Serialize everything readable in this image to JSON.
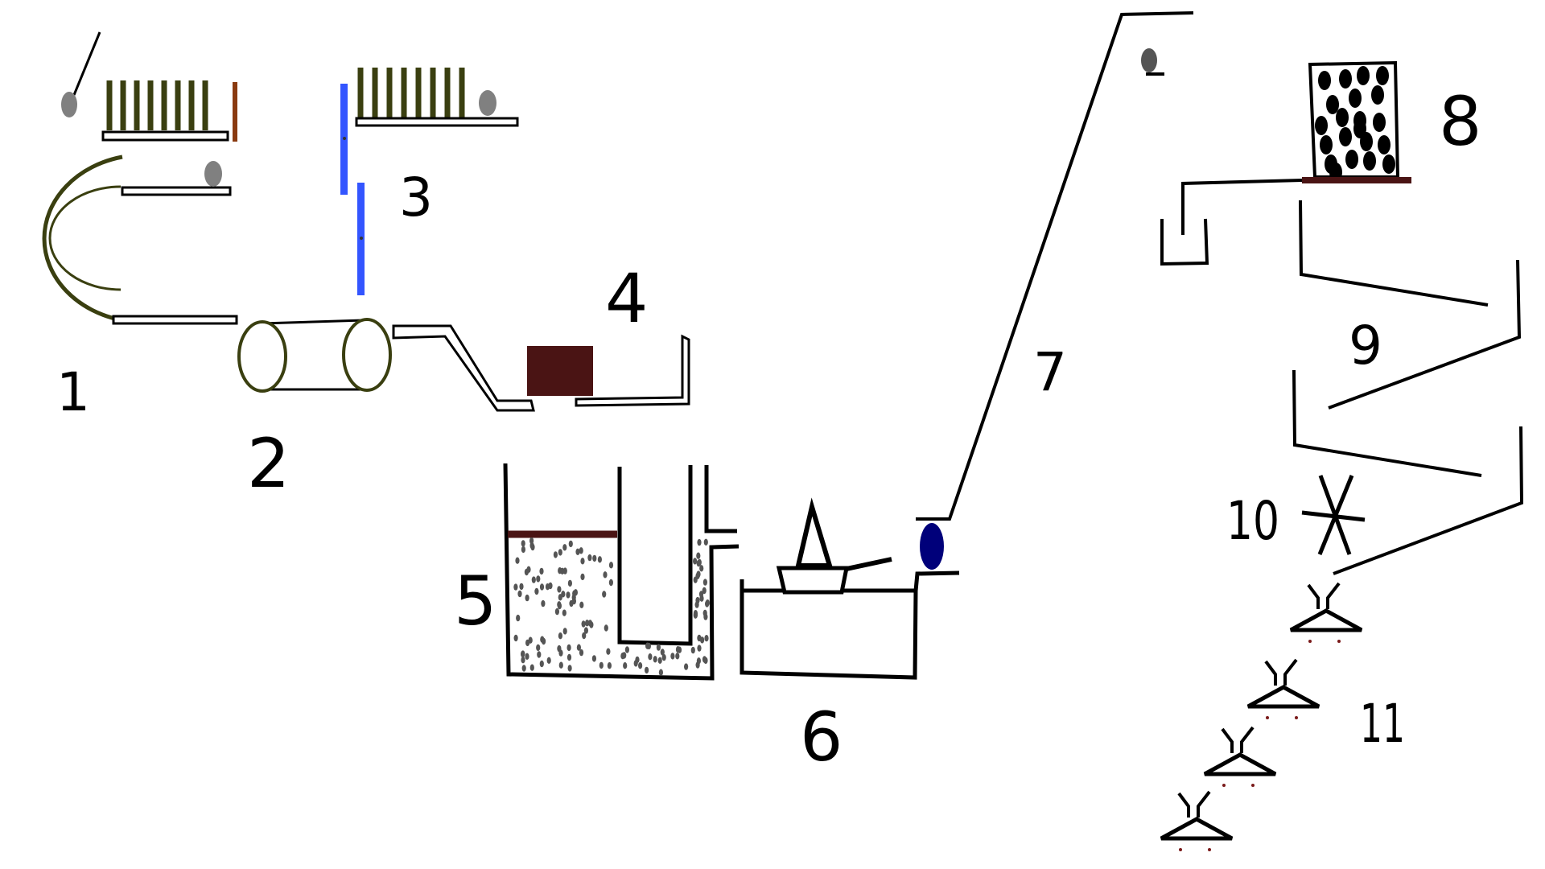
{
  "diagram": {
    "labels": {
      "step1": "1",
      "step2": "2",
      "step3": "3",
      "step4": "4",
      "step5": "5",
      "step6": "6",
      "step7": "7",
      "step8": "8",
      "step9": "9",
      "step10": "10",
      "step11": "11"
    },
    "colors": {
      "stroke": "#000000",
      "olive": "#3a3f10",
      "rust": "#8a3a10",
      "blue_plate": "#3355ff",
      "maroon_block": "#4a1414",
      "navy_drop": "#00007a",
      "grey_ball": "#808080",
      "particles": "#555555"
    }
  }
}
